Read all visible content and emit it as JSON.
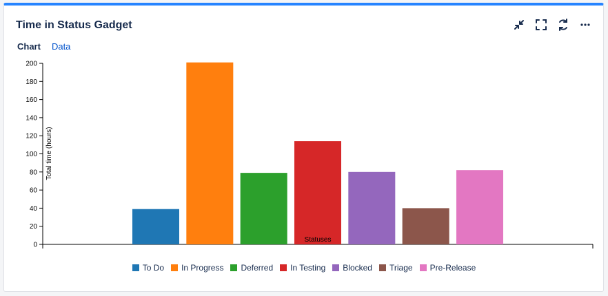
{
  "gadget": {
    "title": "Time in Status Gadget",
    "accent_color": "#2684ff",
    "actions": [
      {
        "name": "minimize-icon",
        "label": "minimize"
      },
      {
        "name": "fullscreen-icon",
        "label": "fullscreen"
      },
      {
        "name": "refresh-icon",
        "label": "refresh"
      },
      {
        "name": "more-icon",
        "label": "more"
      }
    ]
  },
  "tabs": {
    "chart_label": "Chart",
    "data_label": "Data"
  },
  "chart_data": {
    "type": "bar",
    "title": "",
    "xlabel": "Statuses",
    "ylabel": "Total time (hours)",
    "ylim": [
      0,
      200
    ],
    "yticks": [
      0,
      20,
      40,
      60,
      80,
      100,
      120,
      140,
      160,
      180,
      200
    ],
    "categories": [
      "To Do",
      "In Progress",
      "Deferred",
      "In Testing",
      "Blocked",
      "Triage",
      "Pre-Release"
    ],
    "values": [
      39,
      201,
      79,
      114,
      80,
      40,
      82
    ],
    "colors": [
      "#1f77b4",
      "#ff7f0e",
      "#2ca02c",
      "#d62728",
      "#9467bd",
      "#8c564b",
      "#e377c2"
    ],
    "legend_position": "bottom"
  }
}
